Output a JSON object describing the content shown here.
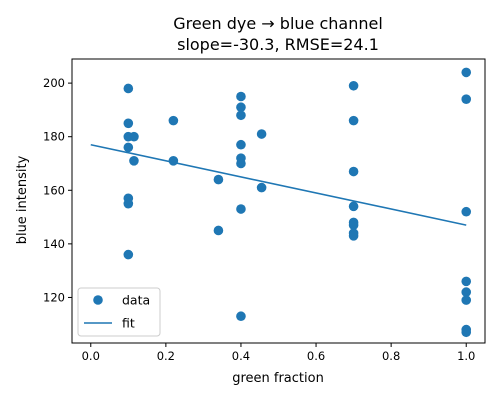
{
  "chart_data": {
    "type": "scatter",
    "title_line1": "Green dye → blue channel",
    "title_line2": "slope=-30.3, RMSE=24.1",
    "xlabel": "green fraction",
    "ylabel": "blue intensity",
    "xlim": [
      -0.05,
      1.05
    ],
    "ylim": [
      103,
      209
    ],
    "x_ticks": [
      0.0,
      0.2,
      0.4,
      0.6,
      0.8,
      1.0
    ],
    "x_tick_labels": [
      "0.0",
      "0.2",
      "0.4",
      "0.6",
      "0.8",
      "1.0"
    ],
    "y_ticks": [
      120,
      140,
      160,
      180,
      200
    ],
    "y_tick_labels": [
      "120",
      "140",
      "160",
      "180",
      "200"
    ],
    "grid": false,
    "legend_position": "bottom-left",
    "color": "#1f77b4",
    "series": [
      {
        "name": "data",
        "kind": "scatter",
        "points": [
          [
            0.1,
            198
          ],
          [
            0.1,
            185
          ],
          [
            0.1,
            180
          ],
          [
            0.115,
            180
          ],
          [
            0.1,
            176
          ],
          [
            0.115,
            171
          ],
          [
            0.1,
            157
          ],
          [
            0.1,
            155
          ],
          [
            0.1,
            136
          ],
          [
            0.22,
            186
          ],
          [
            0.22,
            171
          ],
          [
            0.34,
            164
          ],
          [
            0.34,
            145
          ],
          [
            0.4,
            195
          ],
          [
            0.4,
            191
          ],
          [
            0.4,
            188
          ],
          [
            0.4,
            177
          ],
          [
            0.4,
            172
          ],
          [
            0.4,
            170
          ],
          [
            0.4,
            153
          ],
          [
            0.4,
            113
          ],
          [
            0.455,
            181
          ],
          [
            0.455,
            161
          ],
          [
            0.7,
            199
          ],
          [
            0.7,
            186
          ],
          [
            0.7,
            167
          ],
          [
            0.7,
            154
          ],
          [
            0.7,
            148
          ],
          [
            0.7,
            147
          ],
          [
            0.7,
            144
          ],
          [
            0.7,
            143
          ],
          [
            1.0,
            204
          ],
          [
            1.0,
            194
          ],
          [
            1.0,
            152
          ],
          [
            1.0,
            126
          ],
          [
            1.0,
            122
          ],
          [
            1.0,
            119
          ],
          [
            1.0,
            108
          ],
          [
            1.0,
            107
          ]
        ]
      },
      {
        "name": "fit",
        "kind": "line",
        "points": [
          [
            0.0,
            177
          ],
          [
            1.0,
            147
          ]
        ]
      }
    ]
  }
}
